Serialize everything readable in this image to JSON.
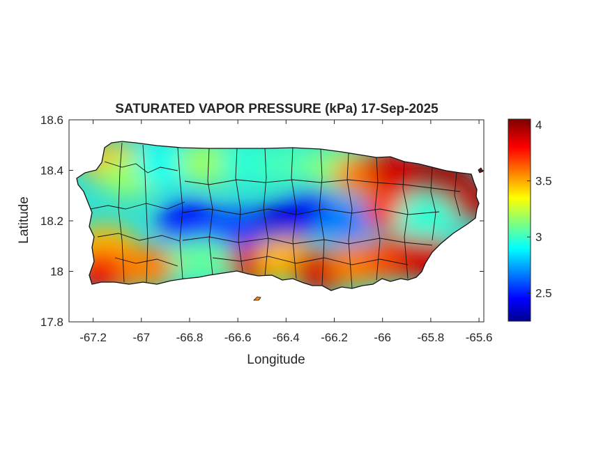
{
  "figure": {
    "title": "SATURATED VAPOR PRESSURE (kPa) 17-Sep-2025",
    "xlabel": "Longitude",
    "ylabel": "Latitude"
  },
  "chart_data": {
    "type": "heatmap",
    "title": "SATURATED VAPOR PRESSURE (kPa) 17-Sep-2025",
    "xlabel": "Longitude",
    "ylabel": "Latitude",
    "xlim": [
      -67.3,
      -65.58
    ],
    "ylim": [
      17.8,
      18.6
    ],
    "x_ticks": [
      -67.2,
      -67,
      -66.8,
      -66.6,
      -66.4,
      -66.2,
      -66,
      -65.8,
      -65.6
    ],
    "x_tick_labels": [
      "-67.2",
      "-67",
      "-66.8",
      "-66.6",
      "-66.4",
      "-66.2",
      "-66",
      "-65.8",
      "-65.6"
    ],
    "y_ticks": [
      18.6,
      18.4,
      18.2,
      18,
      17.8
    ],
    "y_tick_labels": [
      "18.6",
      "18.4",
      "18.2",
      "18",
      "17.8"
    ],
    "colormap": "jet",
    "colorbar": {
      "min": 2.25,
      "max": 4.05,
      "ticks": [
        4,
        3.5,
        3,
        2.5
      ],
      "tick_labels": [
        "4",
        "3.5",
        "3",
        "2.5"
      ]
    },
    "regions": [
      {
        "lon": -67.12,
        "lat": 18.43,
        "value": 3.5
      },
      {
        "lon": -67.05,
        "lat": 18.38,
        "value": 3.2
      },
      {
        "lon": -66.9,
        "lat": 18.42,
        "value": 2.95
      },
      {
        "lon": -66.72,
        "lat": 18.43,
        "value": 3.2
      },
      {
        "lon": -66.55,
        "lat": 18.43,
        "value": 3.0
      },
      {
        "lon": -66.38,
        "lat": 18.42,
        "value": 3.05
      },
      {
        "lon": -66.2,
        "lat": 18.41,
        "value": 3.15
      },
      {
        "lon": -66.08,
        "lat": 18.38,
        "value": 3.6
      },
      {
        "lon": -65.95,
        "lat": 18.4,
        "value": 3.9
      },
      {
        "lon": -65.75,
        "lat": 18.37,
        "value": 4.0
      },
      {
        "lon": -65.65,
        "lat": 18.28,
        "value": 3.95
      },
      {
        "lon": -66.8,
        "lat": 18.2,
        "value": 2.5
      },
      {
        "lon": -66.6,
        "lat": 18.17,
        "value": 2.6
      },
      {
        "lon": -66.4,
        "lat": 18.2,
        "value": 2.4
      },
      {
        "lon": -66.3,
        "lat": 18.24,
        "value": 2.45
      },
      {
        "lon": -66.15,
        "lat": 18.2,
        "value": 2.7
      },
      {
        "lon": -65.95,
        "lat": 18.24,
        "value": 3.75
      },
      {
        "lon": -65.82,
        "lat": 18.22,
        "value": 3.0
      },
      {
        "lon": -67.15,
        "lat": 18.1,
        "value": 3.5
      },
      {
        "lon": -67.15,
        "lat": 18.0,
        "value": 3.85
      },
      {
        "lon": -66.98,
        "lat": 18.02,
        "value": 3.6
      },
      {
        "lon": -66.75,
        "lat": 18.05,
        "value": 3.1
      },
      {
        "lon": -66.52,
        "lat": 18.03,
        "value": 3.9
      },
      {
        "lon": -66.4,
        "lat": 18.05,
        "value": 3.5
      },
      {
        "lon": -66.25,
        "lat": 18.0,
        "value": 3.9
      },
      {
        "lon": -66.1,
        "lat": 18.03,
        "value": 3.6
      },
      {
        "lon": -65.95,
        "lat": 18.05,
        "value": 3.7
      },
      {
        "lon": -65.82,
        "lat": 18.05,
        "value": 3.9
      }
    ]
  }
}
